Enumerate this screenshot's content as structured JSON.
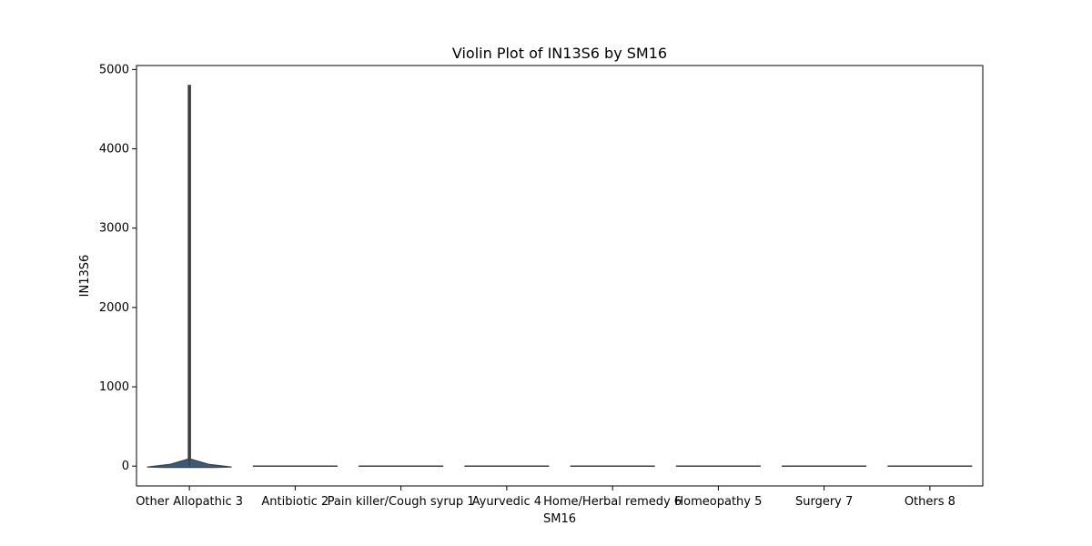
{
  "chart_data": {
    "type": "violin",
    "title": "Violin Plot of IN13S6 by SM16",
    "xlabel": "SM16",
    "ylabel": "IN13S6",
    "ylim": [
      -250,
      5050
    ],
    "yticks": [
      0,
      1000,
      2000,
      3000,
      4000,
      5000
    ],
    "grid": false,
    "legend": "none",
    "categories": [
      "Other Allopathic 3",
      "Antibiotic 2",
      "Pain killer/Cough syrup 1",
      "Ayurvedic 4",
      "Home/Herbal remedy 6",
      "Homeopathy 5",
      "Surgery 7",
      "Others 8"
    ],
    "violins": [
      {
        "category": "Other Allopathic 3",
        "min": 0,
        "max": 4800,
        "peak_density_y": 20
      },
      {
        "category": "Antibiotic 2",
        "min": 0,
        "max": 0
      },
      {
        "category": "Pain killer/Cough syrup 1",
        "min": 0,
        "max": 0
      },
      {
        "category": "Ayurvedic 4",
        "min": 0,
        "max": 0
      },
      {
        "category": "Home/Herbal remedy 6",
        "min": 0,
        "max": 0
      },
      {
        "category": "Homeopathy 5",
        "min": 0,
        "max": 0
      },
      {
        "category": "Surgery 7",
        "min": 0,
        "max": 0
      },
      {
        "category": "Others 8",
        "min": 0,
        "max": 0
      }
    ],
    "colors": {
      "violin_fill": "#3a5a78",
      "edge": "#3f3f3f",
      "axis": "#000000"
    }
  }
}
